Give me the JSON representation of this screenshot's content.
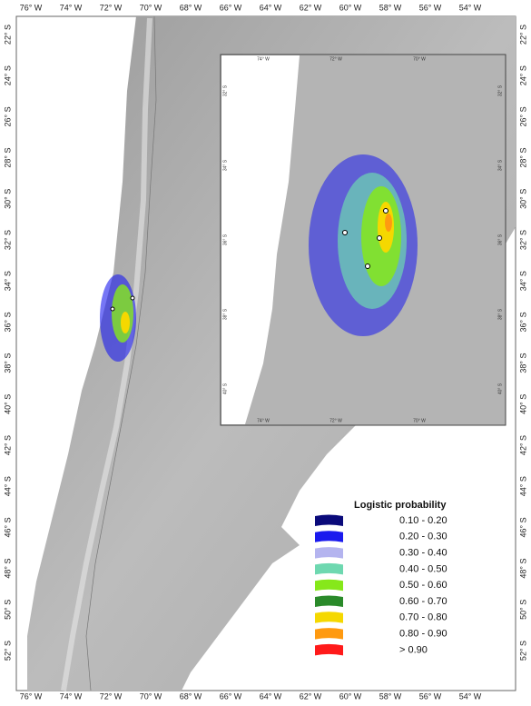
{
  "map": {
    "top_axis": [
      "76° W",
      "74° W",
      "72° W",
      "70° W",
      "68° W",
      "66° W",
      "64° W",
      "62° W",
      "60° W",
      "58° W",
      "56° W",
      "54° W"
    ],
    "bottom_axis": [
      "76° W",
      "74° W",
      "72° W",
      "70° W",
      "68° W",
      "66° W",
      "64° W",
      "62° W",
      "60° W",
      "58° W",
      "56° W",
      "54° W"
    ],
    "left_axis": [
      "22° S",
      "24° S",
      "26° S",
      "28° S",
      "30° S",
      "32° S",
      "34° S",
      "36° S",
      "38° S",
      "40° S",
      "42° S",
      "44° S",
      "46° S",
      "48° S",
      "50° S",
      "52° S"
    ],
    "right_axis": [
      "22° S",
      "24° S",
      "26° S",
      "28° S",
      "30° S",
      "32° S",
      "34° S",
      "36° S",
      "38° S",
      "40° S",
      "42° S",
      "44° S",
      "46° S",
      "48° S",
      "50° S",
      "52° S"
    ],
    "inset": {
      "top_axis": [
        "74° W",
        "72° W",
        "70° W"
      ],
      "bottom_axis": [
        "74° W",
        "72° W",
        "70° W"
      ],
      "left_axis": [
        "32° S",
        "34° S",
        "36° S",
        "38° S",
        "40° S"
      ],
      "right_axis": [
        "32° S",
        "34° S",
        "36° S",
        "38° S",
        "40° S"
      ]
    },
    "legend": {
      "title": "Logistic probability",
      "entries": [
        {
          "label": "0.10 - 0.20",
          "color": "#0a0a7a"
        },
        {
          "label": "0.20 - 0.30",
          "color": "#1a1aee"
        },
        {
          "label": "0.30 - 0.40",
          "color": "#b4b4ef"
        },
        {
          "label": "0.40 - 0.50",
          "color": "#6ed8b0"
        },
        {
          "label": "0.50 - 0.60",
          "color": "#86e81a"
        },
        {
          "label": "0.60 - 0.70",
          "color": "#2a8a2a"
        },
        {
          "label": "0.70 - 0.80",
          "color": "#f5d800"
        },
        {
          "label": "0.80 - 0.90",
          "color": "#ff9a10"
        },
        {
          "label": "> 0.90",
          "color": "#ff1a1a"
        }
      ]
    }
  }
}
